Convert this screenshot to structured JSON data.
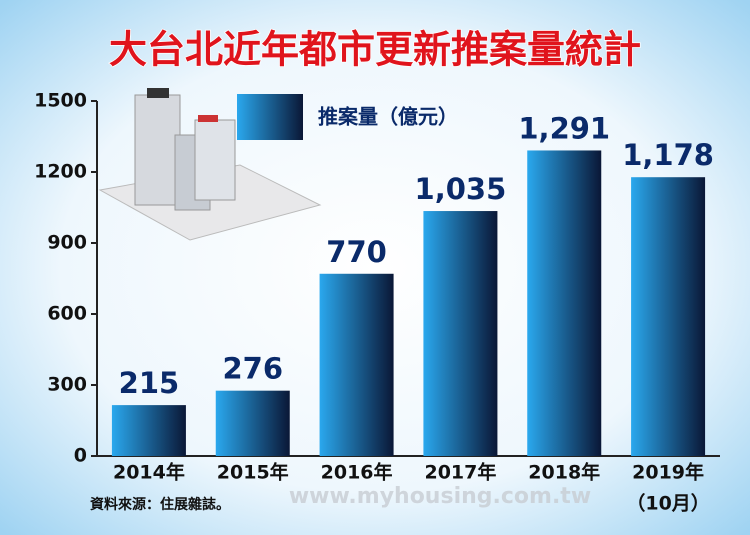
{
  "chart_data": {
    "type": "bar",
    "title": "大台北近年都市更新推案量統計",
    "categories": [
      "2014年",
      "2015年",
      "2016年",
      "2017年",
      "2018年",
      "2019年"
    ],
    "category_note": "（10月）",
    "series": [
      {
        "name": "推案量（億元）",
        "color": [
          "#2aa8ee",
          "#0a1736"
        ],
        "values": [
          215,
          276,
          770,
          1035,
          1291,
          1178
        ],
        "value_labels": [
          "215",
          "276",
          "770",
          "1,035",
          "1,291",
          "1,178"
        ]
      }
    ],
    "ylim": [
      0,
      1500
    ],
    "yticks": [
      0,
      300,
      600,
      900,
      1200,
      1500
    ],
    "grid": false,
    "source": "資料來源：住展雜誌。",
    "watermark": "www.myhousing.com.tw"
  }
}
